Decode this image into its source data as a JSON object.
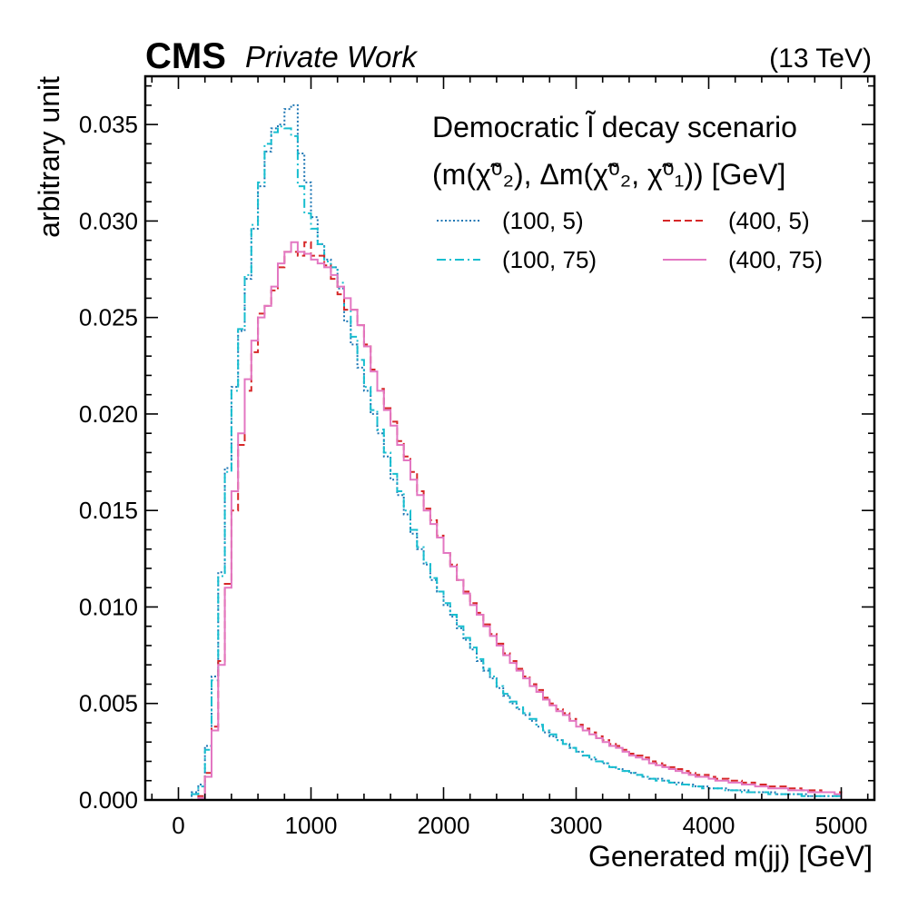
{
  "header": {
    "experiment": "CMS",
    "extra": "Private Work",
    "energy": "(13 TeV)"
  },
  "chart_data": {
    "type": "line",
    "style": "step histogram",
    "xlabel": "Generated m(jj) [GeV]",
    "ylabel": "arbitrary unit",
    "xlim": [
      -250,
      5250
    ],
    "ylim": [
      0,
      0.0375
    ],
    "x_ticks": [
      0,
      1000,
      2000,
      3000,
      4000,
      5000
    ],
    "x_tick_labels": [
      "0",
      "1000",
      "2000",
      "3000",
      "4000",
      "5000"
    ],
    "y_ticks": [
      0,
      0.005,
      0.01,
      0.015,
      0.02,
      0.025,
      0.03,
      0.035
    ],
    "y_tick_labels": [
      "0.000",
      "0.005",
      "0.010",
      "0.015",
      "0.020",
      "0.025",
      "0.030",
      "0.035"
    ],
    "grid": false,
    "legend_position": "top-right",
    "legend_title_line1": "Democratic l̃ decay scenario",
    "legend_title_line2": "(m(χ̃⁰₂), Δm(χ̃⁰₂, χ̃⁰₁)) [GeV]",
    "bin_edges": {
      "start": 0,
      "stop": 5000,
      "width": 50
    },
    "series": [
      {
        "name": "(100, 5)",
        "color": "#1f77b4",
        "dash": "dotted",
        "values": [
          0,
          0,
          0.0004,
          0.0008,
          0.0028,
          0.0064,
          0.0118,
          0.0172,
          0.0214,
          0.0243,
          0.027,
          0.0296,
          0.0318,
          0.0336,
          0.0348,
          0.035,
          0.0358,
          0.036,
          0.0335,
          0.032,
          0.0302,
          0.0288,
          0.028,
          0.0276,
          0.0265,
          0.0248,
          0.0236,
          0.0224,
          0.0212,
          0.02,
          0.019,
          0.0178,
          0.0166,
          0.0158,
          0.0148,
          0.0138,
          0.013,
          0.0122,
          0.0114,
          0.0108,
          0.0101,
          0.0095,
          0.0089,
          0.0083,
          0.0078,
          0.0072,
          0.0067,
          0.0063,
          0.0058,
          0.0054,
          0.005,
          0.0047,
          0.0044,
          0.0041,
          0.0038,
          0.0035,
          0.0033,
          0.0031,
          0.0029,
          0.0027,
          0.0025,
          0.0023,
          0.0021,
          0.002,
          0.0019,
          0.0017,
          0.0016,
          0.0015,
          0.0014,
          0.0013,
          0.0012,
          0.0011,
          0.0011,
          0.001,
          0.0009,
          0.0009,
          0.0008,
          0.0008,
          0.0007,
          0.0007,
          0.0006,
          0.0006,
          0.0006,
          0.0005,
          0.0005,
          0.0005,
          0.0004,
          0.0004,
          0.0004,
          0.0004,
          0.0003,
          0.0003,
          0.0003,
          0.0003,
          0.0003,
          0.0002,
          0.0002,
          0.0002,
          0.0002,
          0.0002
        ]
      },
      {
        "name": "(100, 75)",
        "color": "#17becf",
        "dash": "dashdot",
        "values": [
          0,
          0,
          0.0003,
          0.0007,
          0.0026,
          0.0062,
          0.0116,
          0.017,
          0.0212,
          0.0244,
          0.0272,
          0.0298,
          0.032,
          0.034,
          0.0346,
          0.0349,
          0.0348,
          0.0344,
          0.0318,
          0.0304,
          0.0296,
          0.0288,
          0.0279,
          0.0276,
          0.0268,
          0.0254,
          0.024,
          0.0228,
          0.0214,
          0.0202,
          0.0192,
          0.018,
          0.0169,
          0.016,
          0.015,
          0.014,
          0.0131,
          0.0123,
          0.0115,
          0.0108,
          0.0102,
          0.0096,
          0.009,
          0.0084,
          0.0079,
          0.0073,
          0.0068,
          0.0064,
          0.0059,
          0.0055,
          0.0051,
          0.0048,
          0.0045,
          0.0042,
          0.0039,
          0.0036,
          0.0034,
          0.0031,
          0.0029,
          0.0027,
          0.0025,
          0.0023,
          0.0022,
          0.002,
          0.0019,
          0.0017,
          0.0016,
          0.0015,
          0.0014,
          0.0013,
          0.0012,
          0.0011,
          0.001,
          0.001,
          0.0009,
          0.0008,
          0.0008,
          0.0007,
          0.0007,
          0.0006,
          0.0006,
          0.0006,
          0.0005,
          0.0005,
          0.0005,
          0.0004,
          0.0004,
          0.0004,
          0.0004,
          0.0003,
          0.0003,
          0.0003,
          0.0003,
          0.0003,
          0.0002,
          0.0002,
          0.0002,
          0.0002,
          0.0002,
          0.0002
        ]
      },
      {
        "name": "(400, 5)",
        "color": "#d62728",
        "dash": "dashed",
        "values": [
          0,
          0,
          0,
          0.0002,
          0.0014,
          0.0038,
          0.0072,
          0.0112,
          0.015,
          0.0184,
          0.0212,
          0.0232,
          0.0252,
          0.0256,
          0.0264,
          0.0276,
          0.0284,
          0.0284,
          0.0282,
          0.0289,
          0.0282,
          0.0282,
          0.0277,
          0.027,
          0.0262,
          0.0254,
          0.0254,
          0.0246,
          0.0236,
          0.0223,
          0.0213,
          0.0203,
          0.0196,
          0.0186,
          0.0178,
          0.017,
          0.016,
          0.0151,
          0.0145,
          0.0137,
          0.0128,
          0.0122,
          0.0114,
          0.0108,
          0.0102,
          0.0097,
          0.0091,
          0.0086,
          0.0081,
          0.0076,
          0.0072,
          0.0068,
          0.0064,
          0.006,
          0.0057,
          0.0053,
          0.005,
          0.0047,
          0.0045,
          0.0042,
          0.0039,
          0.0037,
          0.0035,
          0.0033,
          0.0031,
          0.0029,
          0.0028,
          0.0026,
          0.0024,
          0.0023,
          0.0022,
          0.002,
          0.0019,
          0.0018,
          0.0017,
          0.0016,
          0.0015,
          0.0014,
          0.0013,
          0.0013,
          0.0012,
          0.0011,
          0.0011,
          0.001,
          0.001,
          0.0009,
          0.0009,
          0.0008,
          0.0008,
          0.0007,
          0.0007,
          0.0007,
          0.0006,
          0.0006,
          0.0005,
          0.0005,
          0.0005,
          0.0004,
          0.0004,
          0.0004
        ]
      },
      {
        "name": "(400, 75)",
        "color": "#e377c2",
        "dash": "solid",
        "values": [
          0,
          0,
          0,
          0.0001,
          0.0012,
          0.0036,
          0.007,
          0.011,
          0.016,
          0.019,
          0.0218,
          0.0238,
          0.025,
          0.0256,
          0.0266,
          0.0278,
          0.0284,
          0.0289,
          0.0284,
          0.0283,
          0.028,
          0.0278,
          0.0276,
          0.0272,
          0.0266,
          0.026,
          0.0254,
          0.0246,
          0.0235,
          0.0222,
          0.0212,
          0.0202,
          0.0194,
          0.0184,
          0.0176,
          0.0166,
          0.0158,
          0.015,
          0.0143,
          0.0136,
          0.0128,
          0.0121,
          0.0114,
          0.0107,
          0.0101,
          0.0096,
          0.009,
          0.0085,
          0.008,
          0.0075,
          0.0071,
          0.0067,
          0.0063,
          0.0059,
          0.0056,
          0.0052,
          0.0049,
          0.0046,
          0.0044,
          0.0041,
          0.0038,
          0.0036,
          0.0034,
          0.0032,
          0.003,
          0.0028,
          0.0027,
          0.0025,
          0.0023,
          0.0022,
          0.0021,
          0.0019,
          0.0018,
          0.0017,
          0.0016,
          0.0015,
          0.0014,
          0.0013,
          0.0012,
          0.0012,
          0.0011,
          0.001,
          0.001,
          0.0009,
          0.0009,
          0.0008,
          0.0008,
          0.0007,
          0.0007,
          0.0006,
          0.0006,
          0.0006,
          0.0005,
          0.0005,
          0.0005,
          0.0004,
          0.0004,
          0.0004,
          0.0004,
          0.0003
        ]
      }
    ]
  }
}
